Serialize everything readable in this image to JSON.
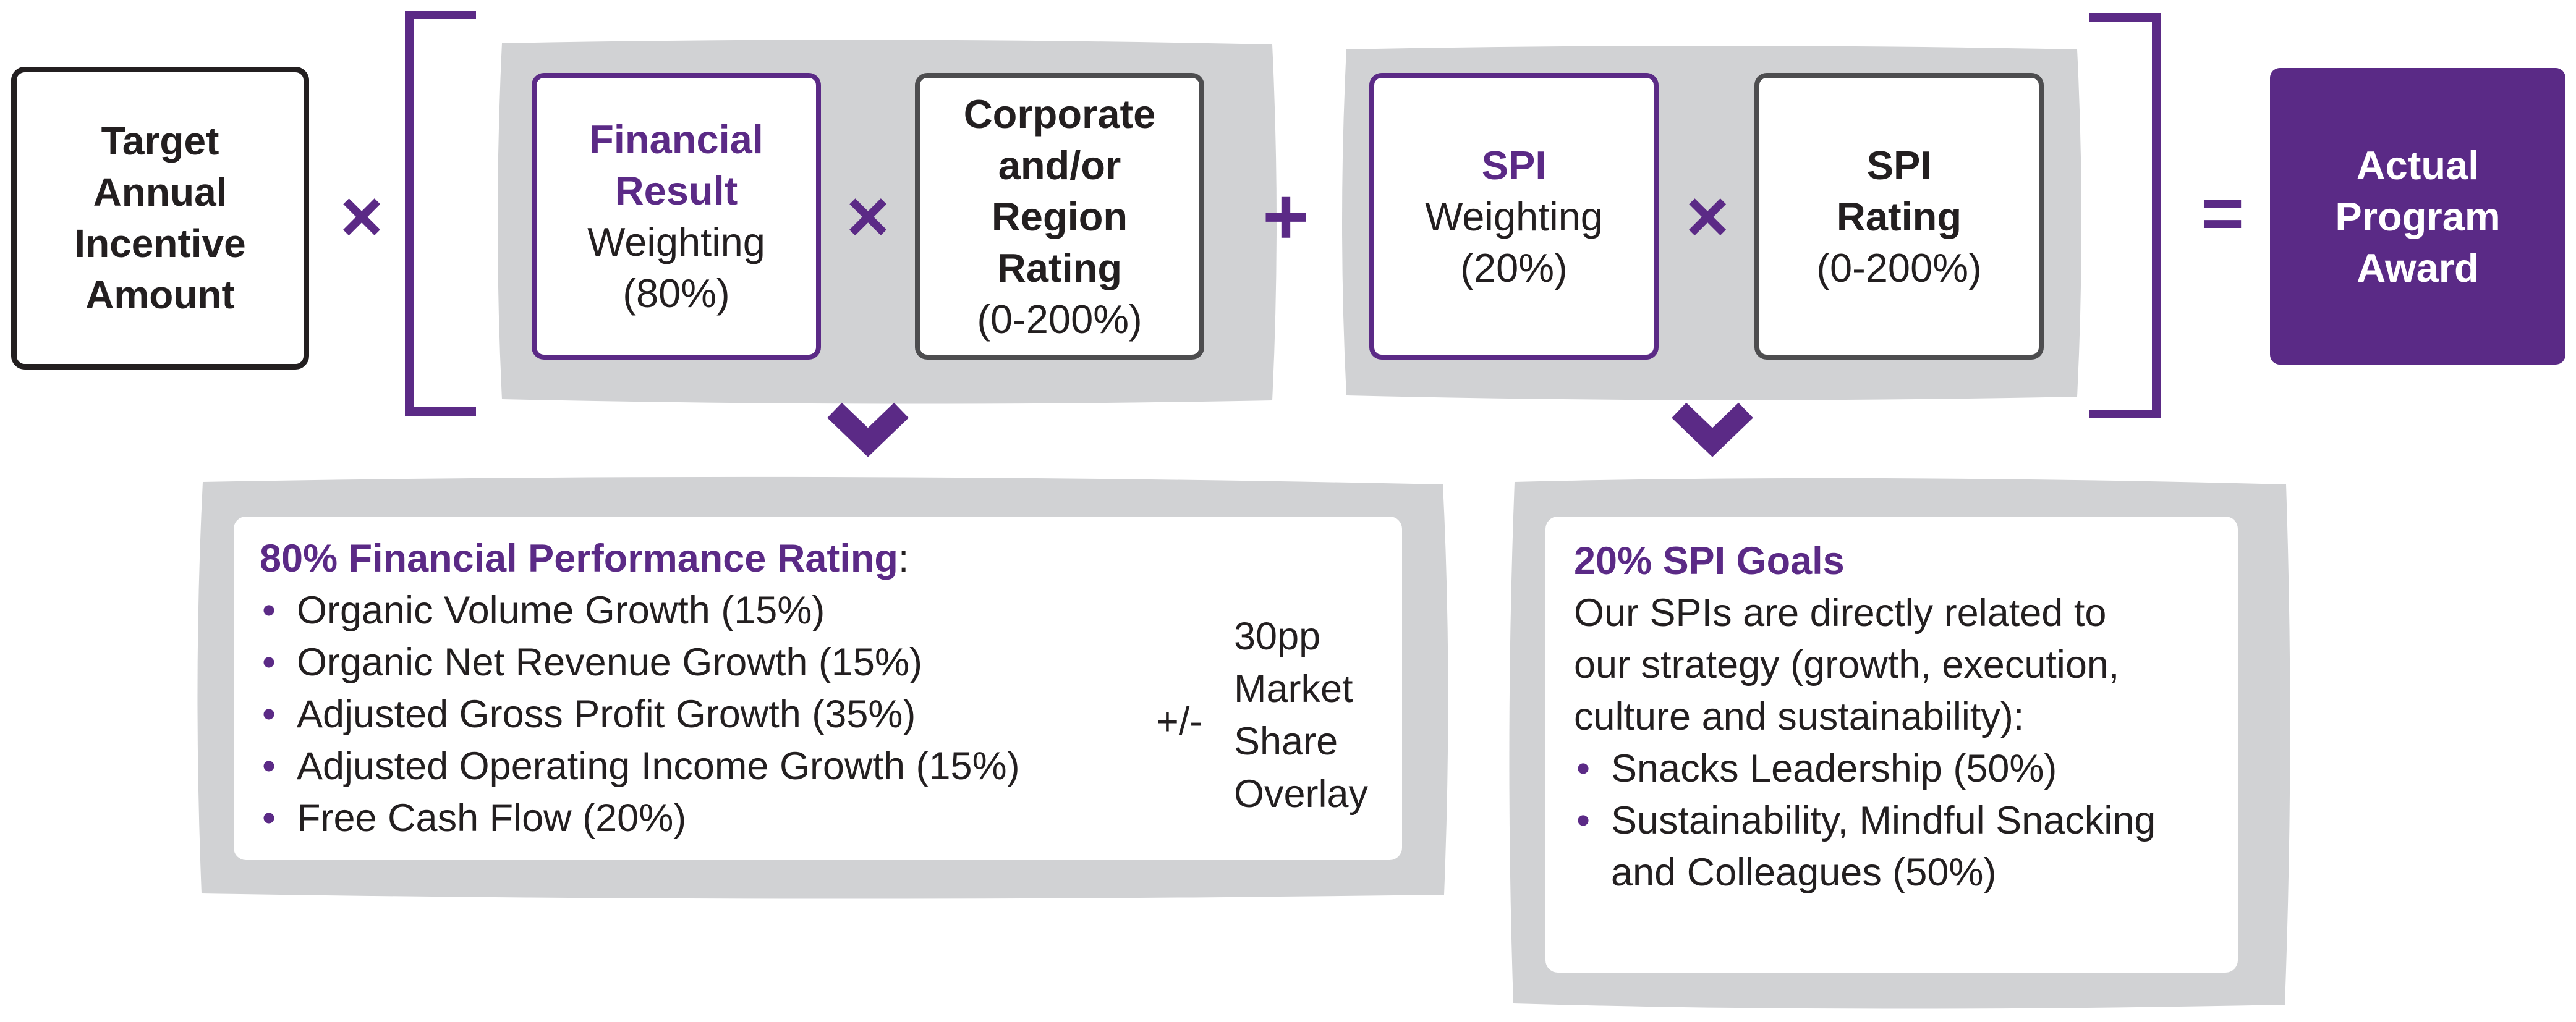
{
  "formula": {
    "target": {
      "lines": [
        "Target",
        "Annual",
        "Incentive",
        "Amount"
      ]
    },
    "multiply_1": "×",
    "financial_weighting": {
      "title_lines": [
        "Financial",
        "Result"
      ],
      "lines": [
        "Weighting",
        "(80%)"
      ]
    },
    "multiply_2": "×",
    "corporate_rating": {
      "title_lines": [
        "Corporate",
        "and/or",
        "Region",
        "Rating"
      ],
      "lines": [
        "(0-200%)"
      ]
    },
    "plus": "+",
    "spi_weighting": {
      "title_lines": [
        "SPI"
      ],
      "lines": [
        "Weighting",
        "(20%)"
      ]
    },
    "multiply_3": "×",
    "spi_rating": {
      "title_lines": [
        "SPI",
        "Rating"
      ],
      "lines": [
        "(0-200%)"
      ]
    },
    "equals": "=",
    "award": {
      "lines": [
        "Actual",
        "Program",
        "Award"
      ]
    }
  },
  "financial_panel": {
    "heading": "80% Financial Performance Rating",
    "heading_suffix": ":",
    "items": [
      "Organic Volume Growth (15%)",
      "Organic Net Revenue Growth (15%)",
      "Adjusted Gross Profit Growth (35%)",
      "Adjusted Operating Income Growth (15%)",
      "Free Cash Flow (20%)"
    ],
    "overlay_sign": "+/-",
    "overlay_lines": [
      "30pp",
      "Market",
      "Share",
      "Overlay"
    ]
  },
  "spi_panel": {
    "heading": "20% SPI Goals",
    "intro_lines": [
      "Our SPIs are directly related to",
      "our strategy (growth, execution,",
      "culture and sustainability):"
    ],
    "items": [
      {
        "lines": [
          "Snacks Leadership (50%)"
        ]
      },
      {
        "lines": [
          "Sustainability, Mindful Snacking",
          "and Colleagues (50%)"
        ]
      }
    ]
  },
  "colors": {
    "purple": "#5b2a86",
    "dark_purple_fill": "#5a2a86",
    "gray_backdrop": "#d1d2d4",
    "box_border_dark": "#4d4d4f",
    "text": "#231f20"
  }
}
